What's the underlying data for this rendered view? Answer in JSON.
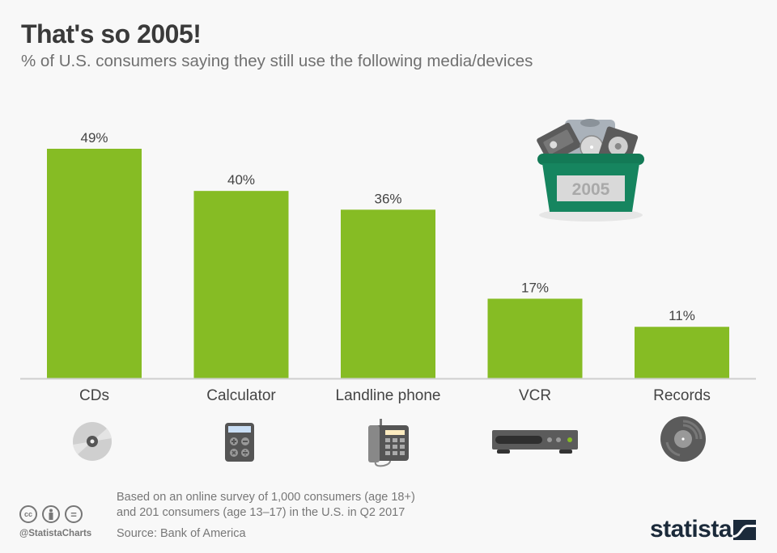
{
  "header": {
    "title": "That's so 2005!",
    "subtitle": "% of U.S. consumers saying they still use the following media/devices"
  },
  "chart_data": {
    "type": "bar",
    "title": "That's so 2005!",
    "subtitle": "% of U.S. consumers saying they still use the following media/devices",
    "categories": [
      "CDs",
      "Calculator",
      "Landline phone",
      "VCR",
      "Records"
    ],
    "values": [
      49,
      40,
      36,
      17,
      11
    ],
    "value_labels": [
      "49%",
      "40%",
      "36%",
      "17%",
      "11%"
    ],
    "unit": "%",
    "xlabel": "",
    "ylabel": "",
    "ylim": [
      0,
      49
    ],
    "grid": false,
    "bar_color": "#86bc24",
    "category_icons": [
      "cd-icon",
      "calculator-icon",
      "landline-phone-icon",
      "vcr-icon",
      "vinyl-record-icon"
    ]
  },
  "illustration": {
    "name": "basket-of-old-media",
    "label": "2005",
    "basket_color": "#16855f"
  },
  "footer": {
    "note_line1": "Based on an online survey of 1,000 consumers (age 18+)",
    "note_line2": "and 201 consumers (age 13–17) in the U.S. in Q2 2017",
    "source": "Source: Bank of America",
    "handle": "@StatistaCharts",
    "cc_icons": [
      "cc",
      "by",
      "nd"
    ],
    "cc_labels": [
      "cc",
      "",
      "="
    ],
    "brand": "statista"
  }
}
